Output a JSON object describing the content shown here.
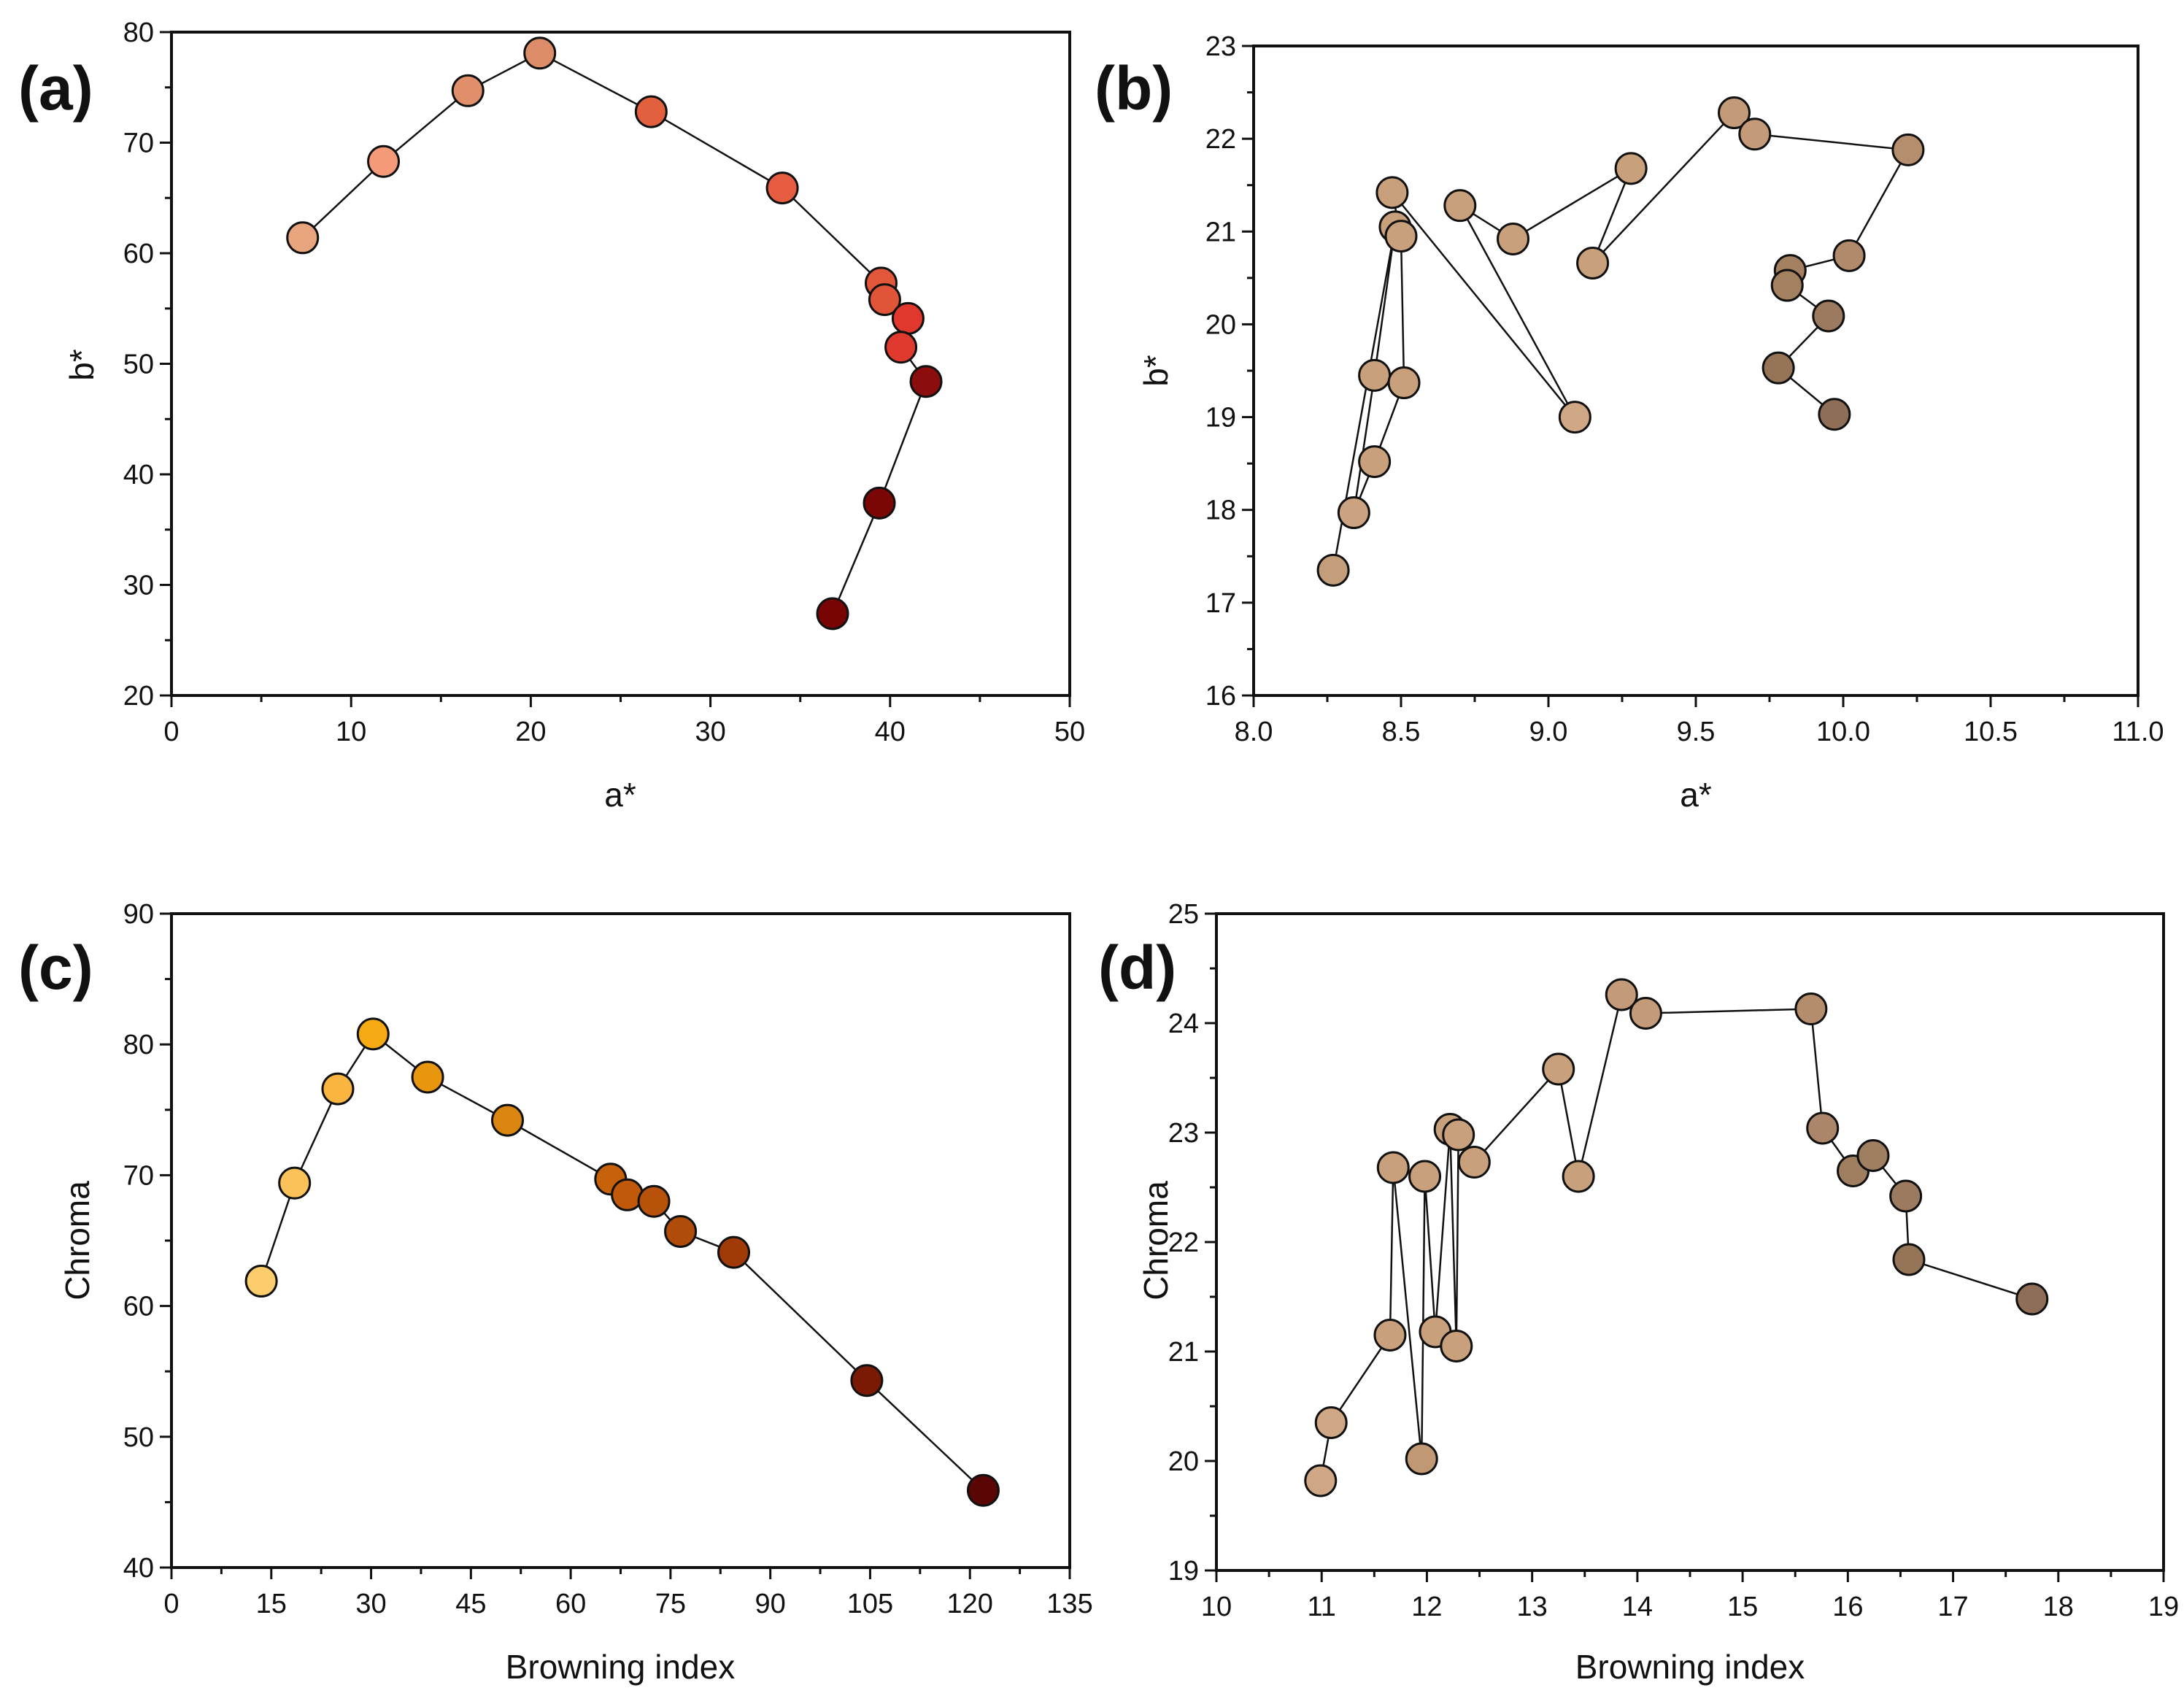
{
  "chart_data": [
    {
      "type": "scatter",
      "panel_label": "(a)",
      "xlabel": "a*",
      "ylabel": "b*",
      "xlim": [
        0,
        50
      ],
      "ylim": [
        20,
        80
      ],
      "xticks": [
        0,
        10,
        20,
        30,
        40,
        50
      ],
      "yticks": [
        20,
        30,
        40,
        50,
        60,
        70,
        80
      ],
      "x": [
        7.3,
        11.8,
        16.5,
        20.5,
        26.7,
        34.0,
        39.5,
        39.7,
        41.0,
        40.6,
        42.0,
        39.4,
        36.8
      ],
      "y": [
        61.4,
        68.3,
        74.7,
        78.1,
        72.8,
        65.9,
        57.3,
        55.8,
        54.1,
        51.5,
        48.4,
        37.4,
        27.4
      ],
      "colors": [
        "#e8a47c",
        "#f49a78",
        "#e08f6a",
        "#dc8c68",
        "#e3603f",
        "#e65c40",
        "#e2563a",
        "#e05438",
        "#e0382c",
        "#e03a2e",
        "#8b0d0d",
        "#7a0606",
        "#780404"
      ],
      "connected": true
    },
    {
      "type": "scatter",
      "panel_label": "(b)",
      "xlabel": "a*",
      "ylabel": "b*",
      "xlim": [
        8.0,
        11.0
      ],
      "ylim": [
        16,
        23
      ],
      "xticks": [
        "8.0",
        "8.5",
        "9.0",
        "9.5",
        "10.0",
        "10.5",
        "11.0"
      ],
      "yticks": [
        16,
        17,
        18,
        19,
        20,
        21,
        22,
        23
      ],
      "x": [
        8.27,
        8.48,
        8.41,
        8.34,
        8.41,
        8.51,
        8.5,
        8.47,
        9.09,
        8.7,
        8.88,
        9.28,
        9.15,
        9.63,
        9.7,
        10.22,
        10.02,
        9.82,
        9.81,
        9.95,
        9.78,
        9.97
      ],
      "y": [
        17.35,
        21.05,
        19.45,
        17.97,
        18.52,
        19.37,
        20.95,
        21.42,
        19.0,
        21.28,
        20.92,
        21.68,
        20.66,
        22.28,
        22.05,
        21.88,
        20.74,
        20.58,
        20.42,
        20.09,
        19.53,
        19.03
      ],
      "colors": [
        "#c49d7b",
        "#c9a07c",
        "#c9a07c",
        "#cba381",
        "#c9a07c",
        "#c9a07c",
        "#c9a07c",
        "#c9a07c",
        "#cfa784",
        "#c9a07c",
        "#c9a07c",
        "#c9a07c",
        "#c9a07c",
        "#c49b78",
        "#c49b78",
        "#b58e6e",
        "#b08a6a",
        "#a3805f",
        "#a3805f",
        "#9c7a5f",
        "#957458",
        "#8f6e57"
      ],
      "connected": true
    },
    {
      "type": "scatter",
      "panel_label": "(c)",
      "xlabel": "Browning index",
      "ylabel": "Chroma",
      "xlim": [
        0,
        135
      ],
      "ylim": [
        40,
        90
      ],
      "xticks": [
        0,
        15,
        30,
        45,
        60,
        75,
        90,
        105,
        120,
        135
      ],
      "yticks": [
        40,
        50,
        60,
        70,
        80,
        90
      ],
      "x": [
        13.5,
        18.5,
        25.0,
        30.3,
        38.5,
        50.5,
        66.0,
        68.5,
        72.5,
        76.5,
        84.5,
        104.5,
        122.0
      ],
      "y": [
        61.9,
        69.4,
        76.6,
        80.8,
        77.5,
        74.2,
        69.7,
        68.5,
        68.0,
        65.7,
        64.1,
        54.3,
        45.9
      ],
      "colors": [
        "#fccd6a",
        "#fbc25a",
        "#f9b540",
        "#f5a912",
        "#e8960e",
        "#d98510",
        "#c8620a",
        "#c05a0a",
        "#b8520a",
        "#b04c0a",
        "#a03a08",
        "#7a1a05",
        "#5a0605"
      ],
      "connected": true
    },
    {
      "type": "scatter",
      "panel_label": "(d)",
      "xlabel": "Browning index",
      "ylabel": "Chroma",
      "xlim": [
        10,
        19
      ],
      "ylim": [
        19,
        25
      ],
      "xticks": [
        10,
        11,
        12,
        13,
        14,
        15,
        16,
        17,
        18,
        19
      ],
      "yticks": [
        19,
        20,
        21,
        22,
        23,
        24,
        25
      ],
      "x": [
        10.99,
        11.09,
        11.65,
        11.68,
        11.95,
        11.98,
        12.08,
        12.22,
        12.28,
        12.3,
        12.45,
        13.25,
        13.44,
        13.85,
        14.08,
        15.65,
        15.76,
        16.05,
        16.24,
        16.55,
        16.58,
        17.75
      ],
      "y": [
        19.82,
        20.35,
        21.15,
        22.68,
        20.02,
        22.6,
        21.18,
        23.03,
        21.05,
        22.98,
        22.73,
        23.58,
        22.6,
        24.26,
        24.09,
        24.13,
        23.04,
        22.65,
        22.79,
        22.42,
        21.84,
        21.48
      ],
      "colors": [
        "#cfa784",
        "#cfa784",
        "#c9a07c",
        "#c9a07c",
        "#c09874",
        "#c9a07c",
        "#c9a07c",
        "#c9a07c",
        "#c9a07c",
        "#c9a07c",
        "#c9a07c",
        "#c9a07c",
        "#c9a07c",
        "#c49b78",
        "#c49b78",
        "#b38d6c",
        "#ab866a",
        "#a07e60",
        "#a07e60",
        "#9c7a5f",
        "#957458",
        "#8f6e57"
      ],
      "connected": true
    }
  ]
}
